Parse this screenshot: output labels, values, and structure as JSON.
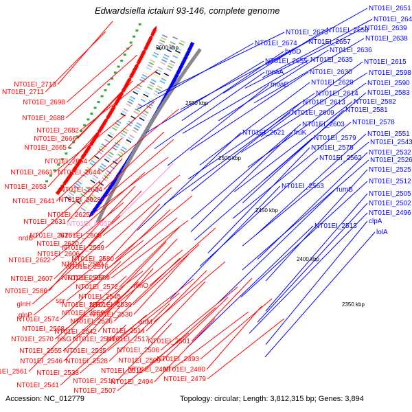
{
  "title": "Edwardsiella ictaluri 93-146, complete genome",
  "footer": {
    "accession": "Accession: NC_012779",
    "summary": "Topology: circular; Length: 3,812,315 bp; Genes: 3,894"
  },
  "colors": {
    "forward": "#ff0000",
    "reverse": "#0000ff",
    "special": "#ff88cc",
    "backbone": "#888888"
  },
  "ticks": [
    "2600 kbp",
    "2550 kbp",
    "2500 kbp",
    "2450 kbp",
    "2400 kbp",
    "2350 kbp"
  ],
  "right_labels": [
    "NT01EI_2651",
    "NT01EI_2645",
    "NT01EI_2639",
    "NT01EI_2675",
    "NT01EI_2658",
    "NT01EI_2638",
    "NT01EI_2674",
    "NT01EI_2657",
    "hybD",
    "NT01EI_2636",
    "NT01EI_2655",
    "NT01EI_2635",
    "NT01EI_2615",
    "moaA",
    "NT01EI_2630",
    "NT01EI_2598",
    "moaE",
    "NT01EI_2629",
    "NT01EI_2590",
    "NT01EI_2614",
    "NT01EI_2583",
    "NT01EI_2613",
    "NT01EI_2582",
    "NT01EI_2609",
    "NT01EI_2581",
    "NT01EI_2603",
    "NT01EI_2578",
    "NT01EI_2621",
    "fruK",
    "NT01EI_2551",
    "NT01EI_2579",
    "NT01EI_2543",
    "NT01EI_2575",
    "NT01EI_2532",
    "NT01EI_2562",
    "NT01EI_2526",
    "NT01EI_2525",
    "NT01EI_2563",
    "rumB",
    "NT01EI_2512",
    "NT01EI_2505",
    "NT01EI_2502",
    "NT01EI_2496",
    "NT01EI_2513",
    "clpA",
    "lolA"
  ],
  "left_labels": [
    "NT01EI_2713",
    "NT01EI_2711",
    "NT01EI_2698",
    "NT01EI_2688",
    "NT01EI_2682",
    "NT01EI_2666",
    "NT01EI_2665",
    "NT01EI_2654",
    "NT01EI_2661",
    "NT01EI_2644",
    "NT01EI_2653",
    "NT01EI_2634",
    "NT01EI_2641",
    "NT01EI_2628",
    "NT01EI_2625",
    "NT01EI_2631",
    "NT01EI_t0059",
    "nrdB",
    "NT01EI_2626",
    "NT01EI_2605",
    "NT01EI_2620",
    "NT01EI_2606",
    "NT01EI_2589",
    "NT01EI_2622",
    "NT01EI_2580",
    "NT01EI_2593",
    "NT01EI_2576",
    "NT01EI_2607",
    "NT01EI_2587",
    "NT01EI_2569",
    "NT01EI_2586",
    "NT01EI_2572",
    "rimO",
    "glnH",
    "spr",
    "NT01EI_2545",
    "NT01EI_2567",
    "NT01EI_2539",
    "glnP",
    "NT01EI_2559",
    "NT01EI_2530",
    "NT01EI_2574",
    "NT01EI_2536",
    "artM",
    "NT01EI_2568",
    "NT01EI_2542",
    "NT01EI_2514",
    "hisG",
    "NT01EI_2570",
    "NT01EI_2540",
    "NT01EI_2517",
    "NT01EI_2501",
    "NT01EI_2555",
    "NT01EI_2535",
    "NT01EI_2506",
    "NT01EI_2546",
    "NT01EI_2528",
    "NT01EI_2509",
    "NT01EI_2493",
    "NT01EI_2498",
    "NT01EI_2480",
    "NT01EI_2561",
    "NT01EI_2538",
    "NT01EI_2511",
    "NT01EI_2479",
    "NT01EI_2510",
    "NT01EI_2494",
    "NT01EI_2541",
    "NT01EI_2507"
  ]
}
